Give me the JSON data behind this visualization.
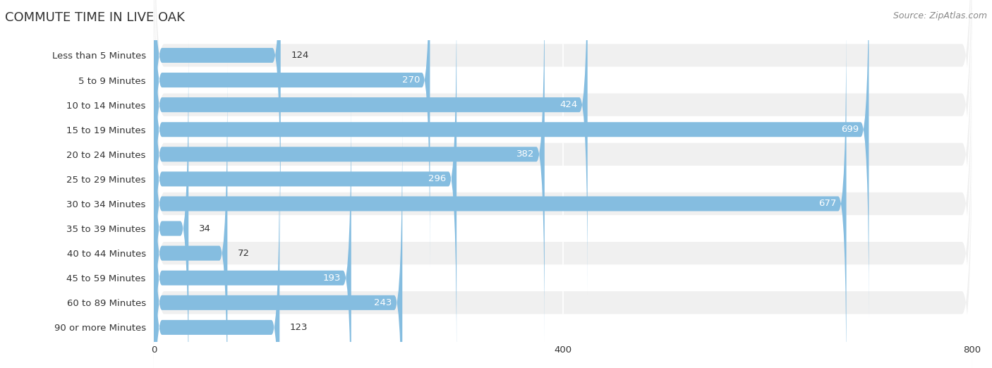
{
  "title_text": "COMMUTE TIME IN LIVE OAK",
  "source_text": "Source: ZipAtlas.com",
  "categories": [
    "Less than 5 Minutes",
    "5 to 9 Minutes",
    "10 to 14 Minutes",
    "15 to 19 Minutes",
    "20 to 24 Minutes",
    "25 to 29 Minutes",
    "30 to 34 Minutes",
    "35 to 39 Minutes",
    "40 to 44 Minutes",
    "45 to 59 Minutes",
    "60 to 89 Minutes",
    "90 or more Minutes"
  ],
  "values": [
    124,
    270,
    424,
    699,
    382,
    296,
    677,
    34,
    72,
    193,
    243,
    123
  ],
  "bar_color": "#85bde0",
  "bg_color": "#ffffff",
  "row_bg_light": "#f0f0f0",
  "row_bg_white": "#ffffff",
  "text_color": "#333333",
  "title_color": "#333333",
  "source_color": "#888888",
  "label_color_inside": "#ffffff",
  "label_color_outside": "#333333",
  "xlim": [
    0,
    800
  ],
  "xticks": [
    0,
    400,
    800
  ],
  "title_fontsize": 13,
  "label_fontsize": 9.5,
  "value_fontsize": 9.5,
  "source_fontsize": 9,
  "inside_label_threshold": 180
}
